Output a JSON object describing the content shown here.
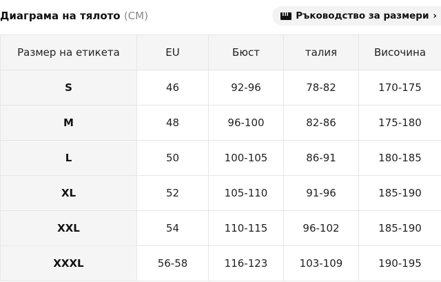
{
  "header": {
    "title": "Диаграма на тялото",
    "unit": "(CM)",
    "guide_label": "Ръководство за размери",
    "guide_chevron": "›",
    "guide_icon": "ruler-icon"
  },
  "table": {
    "columns": [
      "Размер на етикета",
      "EU",
      "Бюст",
      "талия",
      "Височина"
    ],
    "rows": [
      [
        "S",
        "46",
        "92-96",
        "78-82",
        "170-175"
      ],
      [
        "M",
        "48",
        "96-100",
        "82-86",
        "175-180"
      ],
      [
        "L",
        "50",
        "100-105",
        "86-91",
        "180-185"
      ],
      [
        "XL",
        "52",
        "105-110",
        "91-96",
        "185-190"
      ],
      [
        "XXL",
        "54",
        "110-115",
        "96-102",
        "185-190"
      ],
      [
        "XXXL",
        "56-58",
        "116-123",
        "103-109",
        "190-195"
      ]
    ]
  }
}
